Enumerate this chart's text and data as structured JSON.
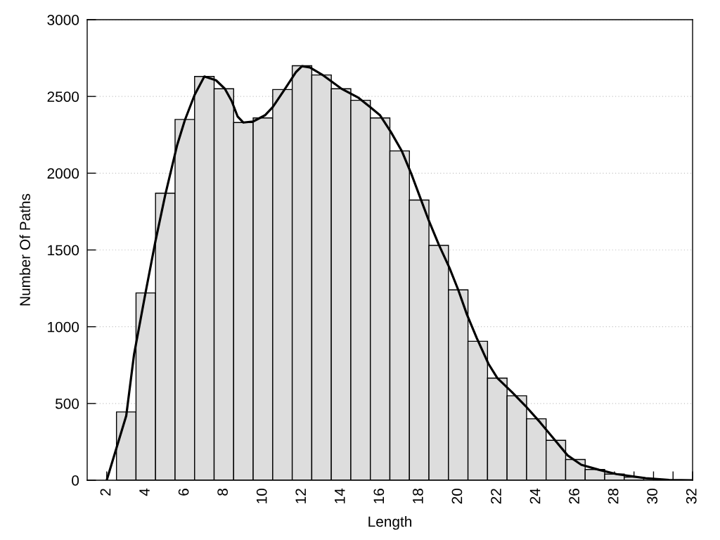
{
  "chart_data": {
    "type": "histogram",
    "xlabel": "Length",
    "ylabel": "Number Of Paths",
    "bins": [
      2.5,
      3.5,
      4.5,
      5.5,
      6.5,
      7.5,
      8.5,
      9.5,
      10.5,
      11.5,
      12.5,
      13.5,
      14.5,
      15.5,
      16.5,
      17.5,
      18.5,
      19.5,
      20.5,
      21.5,
      22.5,
      23.5,
      24.5,
      25.5,
      26.5,
      27.5,
      28.5,
      29.5
    ],
    "values": [
      445,
      1220,
      1870,
      2350,
      2630,
      2550,
      2330,
      2360,
      2545,
      2700,
      2640,
      2550,
      2475,
      2360,
      2145,
      1825,
      1530,
      1240,
      905,
      665,
      550,
      400,
      260,
      135,
      70,
      40,
      20
    ],
    "color": "#dddddd",
    "series": [
      {
        "type": "line",
        "color": "#000000",
        "x": [
          2,
          3,
          3.4,
          4,
          4.5,
          5,
          5.6,
          6,
          6.5,
          7,
          7.6,
          8.05,
          8.4,
          8.7,
          9,
          9.5,
          10.1,
          10.5,
          11.1,
          11.7,
          12,
          12.4,
          13.1,
          14,
          14.9,
          15.5,
          16,
          16.55,
          17.1,
          17.6,
          18.05,
          18.5,
          19,
          19.55,
          20,
          20.45,
          20.95,
          21.55,
          22,
          22.75,
          23.45,
          24.2,
          24.9,
          25.6,
          26.3,
          27.2,
          28.1,
          29.6,
          30.8,
          32
        ],
        "values": [
          0,
          420,
          820,
          1230,
          1560,
          1860,
          2180,
          2345,
          2510,
          2630,
          2605,
          2550,
          2470,
          2370,
          2330,
          2337,
          2377,
          2430,
          2544,
          2660,
          2697,
          2689,
          2636,
          2552,
          2491,
          2430,
          2377,
          2269,
          2147,
          1995,
          1842,
          1689,
          1536,
          1384,
          1240,
          1078,
          926,
          758,
          666,
          574,
          483,
          376,
          269,
          162,
          101,
          68,
          40,
          13,
          2,
          0
        ]
      }
    ],
    "xlim": [
      1,
      32
    ],
    "xticks": [
      2,
      {
        "value": 3,
        "label": null
      },
      4,
      {
        "value": 5,
        "label": null
      },
      6,
      {
        "value": 7,
        "label": null
      },
      8,
      {
        "value": 9,
        "label": null
      },
      10,
      {
        "value": 11,
        "label": null
      },
      12,
      {
        "value": 13,
        "label": null
      },
      14,
      {
        "value": 15,
        "label": null
      },
      16,
      {
        "value": 17,
        "label": null
      },
      18,
      {
        "value": 19,
        "label": null
      },
      20,
      {
        "value": 21,
        "label": null
      },
      22,
      {
        "value": 23,
        "label": null
      },
      24,
      {
        "value": 25,
        "label": null
      },
      26,
      {
        "value": 27,
        "label": null
      },
      28,
      {
        "value": 29,
        "label": null
      },
      30,
      {
        "value": 31,
        "label": null
      },
      32
    ],
    "ylim": [
      0,
      3000
    ],
    "yticks": [
      0,
      500,
      1000,
      1500,
      2000,
      2500,
      3000
    ],
    "grid": "y",
    "marker": "none",
    "line_style": "solid"
  }
}
